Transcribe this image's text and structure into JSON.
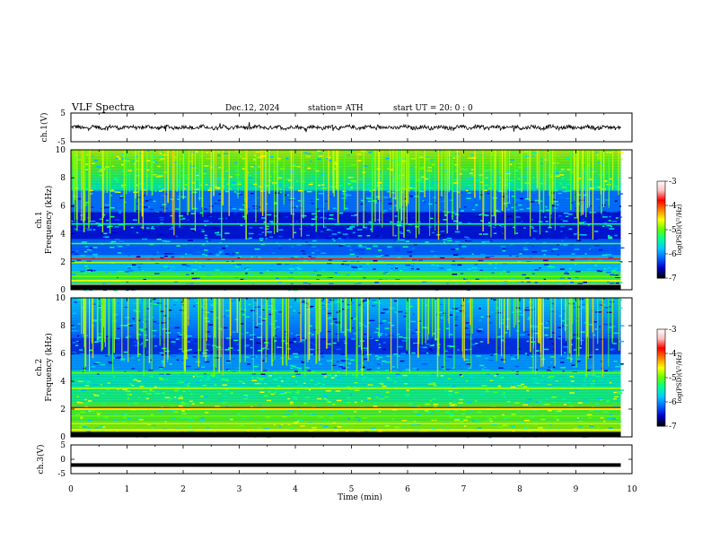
{
  "header": {
    "title": "VLF  Spectra",
    "date": "Dec.12, 2024",
    "station": "station= ATH",
    "start": "start  UT  =   20: 0  : 0"
  },
  "chart_data": [
    {
      "type": "line",
      "panel": "ch1-waveform",
      "ylabel": "ch.1(V)",
      "yticks": [
        "5",
        "-5"
      ],
      "ylim": [
        -5,
        5
      ],
      "xlim": [
        0,
        10
      ],
      "x_end": 9.8,
      "series_color": "#000000",
      "baseline": 0.0
    },
    {
      "type": "heatmap",
      "panel": "ch1-spectrogram",
      "ylabel_top": "ch.1",
      "ylabel": "Frequency  (kHz)",
      "yticks": [
        "0",
        "2",
        "4",
        "6",
        "8",
        "10"
      ],
      "ylim": [
        0,
        10
      ],
      "xlim": [
        0,
        10
      ],
      "x_end": 9.8,
      "colorbar": {
        "label": "log(PSD)(V²/Hz)",
        "ticks": [
          "-3",
          "-4",
          "-5",
          "-6",
          "-7"
        ],
        "range": [
          -7,
          -3
        ],
        "colors": [
          "#000000",
          "#0000c8",
          "#0064ff",
          "#00c8ff",
          "#00ff96",
          "#64ff00",
          "#ffff00",
          "#ff8000",
          "#ff0000",
          "#ffc0c0",
          "#ffffff"
        ]
      }
    },
    {
      "type": "heatmap",
      "panel": "ch2-spectrogram",
      "ylabel_top": "ch.2",
      "ylabel": "Frequency  (kHz)",
      "yticks": [
        "0",
        "2",
        "4",
        "6",
        "8",
        "10"
      ],
      "ylim": [
        0,
        10
      ],
      "xlim": [
        0,
        10
      ],
      "x_end": 9.8,
      "colorbar": {
        "label": "log(PSD)(V²/Hz)",
        "ticks": [
          "-3",
          "-4",
          "-5",
          "-6",
          "-7"
        ],
        "range": [
          -7,
          -3
        ]
      }
    },
    {
      "type": "line",
      "panel": "ch3-waveform",
      "ylabel": "ch.3(V)",
      "yticks": [
        "5",
        "0",
        "-5"
      ],
      "ylim": [
        -5,
        5
      ],
      "xlim": [
        0,
        10
      ],
      "x_end": 9.8,
      "baseline": -2.0,
      "series_color": "#000000"
    }
  ],
  "x_axis": {
    "label": "Time  (min)",
    "ticks": [
      "0",
      "1",
      "2",
      "3",
      "4",
      "5",
      "6",
      "7",
      "8",
      "9",
      "10"
    ]
  }
}
